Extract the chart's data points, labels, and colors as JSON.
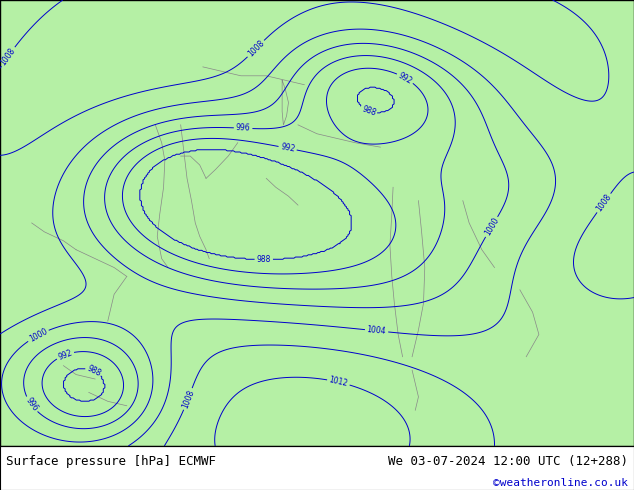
{
  "title_left": "Surface pressure [hPa] ECMWF",
  "title_right": "We 03-07-2024 12:00 UTC (12+288)",
  "copyright": "©weatheronline.co.uk",
  "map_bg": "#b5f0a5",
  "ocean_bg": "#d8eef8",
  "land_bg": "#b5f0a5",
  "border_color": "#000000",
  "text_color": "#000000",
  "copyright_color": "#0000cc",
  "bottom_bar_color": "#ffffff",
  "contour_color": "#0000cc",
  "coast_color": "#888888",
  "figsize": [
    6.34,
    4.9
  ],
  "dpi": 100
}
